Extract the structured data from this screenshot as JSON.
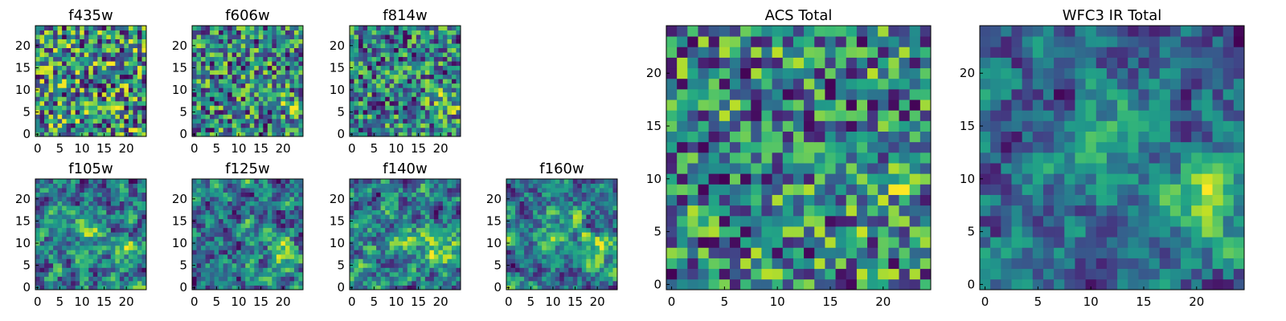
{
  "chart_data": [
    {
      "id": "f435w",
      "type": "heatmap",
      "title": "f435w",
      "colormap": "viridis",
      "size": 25,
      "texture": "noise",
      "hotspots": [],
      "xticks": [
        "0",
        "5",
        "10",
        "15",
        "20"
      ],
      "yticks": [
        "0",
        "5",
        "10",
        "15",
        "20"
      ],
      "xlim": [
        0,
        25
      ],
      "ylim": [
        0,
        25
      ]
    },
    {
      "id": "f606w",
      "type": "heatmap",
      "title": "f606w",
      "colormap": "viridis",
      "size": 25,
      "texture": "noise",
      "hotspots": [
        {
          "x": 22,
          "y": 7,
          "amp": 0.15
        }
      ],
      "xticks": [
        "0",
        "5",
        "10",
        "15",
        "20"
      ],
      "yticks": [
        "0",
        "5",
        "10",
        "15",
        "20"
      ],
      "xlim": [
        0,
        25
      ],
      "ylim": [
        0,
        25
      ]
    },
    {
      "id": "f814w",
      "type": "heatmap",
      "title": "f814w",
      "colormap": "viridis",
      "size": 25,
      "texture": "noise",
      "hotspots": [
        {
          "x": 21,
          "y": 7,
          "amp": 0.3
        }
      ],
      "xticks": [
        "0",
        "5",
        "10",
        "15",
        "20"
      ],
      "yticks": [
        "0",
        "5",
        "10",
        "15",
        "20"
      ],
      "xlim": [
        0,
        25
      ],
      "ylim": [
        0,
        25
      ]
    },
    {
      "id": "f105w",
      "type": "heatmap",
      "title": "f105w",
      "colormap": "viridis",
      "size": 25,
      "texture": "smooth",
      "hotspots": [
        {
          "x": 19,
          "y": 9,
          "amp": 0.3
        },
        {
          "x": 12,
          "y": 13,
          "amp": 0.25
        }
      ],
      "xticks": [
        "0",
        "5",
        "10",
        "15",
        "20"
      ],
      "yticks": [
        "0",
        "5",
        "10",
        "15",
        "20"
      ],
      "xlim": [
        0,
        25
      ],
      "ylim": [
        0,
        25
      ]
    },
    {
      "id": "f125w",
      "type": "heatmap",
      "title": "f125w",
      "colormap": "viridis",
      "size": 25,
      "texture": "smooth",
      "hotspots": [
        {
          "x": 20,
          "y": 8,
          "amp": 0.35
        },
        {
          "x": 12,
          "y": 12,
          "amp": 0.2
        }
      ],
      "xticks": [
        "0",
        "5",
        "10",
        "15",
        "20"
      ],
      "yticks": [
        "0",
        "5",
        "10",
        "15",
        "20"
      ],
      "xlim": [
        0,
        25
      ],
      "ylim": [
        0,
        25
      ]
    },
    {
      "id": "f140w",
      "type": "heatmap",
      "title": "f140w",
      "colormap": "viridis",
      "size": 25,
      "texture": "smooth",
      "hotspots": [
        {
          "x": 20,
          "y": 8,
          "amp": 0.3
        },
        {
          "x": 12,
          "y": 12,
          "amp": 0.2
        }
      ],
      "xticks": [
        "0",
        "5",
        "10",
        "15",
        "20"
      ],
      "yticks": [
        "0",
        "5",
        "10",
        "15",
        "20"
      ],
      "xlim": [
        0,
        25
      ],
      "ylim": [
        0,
        25
      ]
    },
    {
      "id": "f160w",
      "type": "heatmap",
      "title": "f160w",
      "colormap": "viridis",
      "size": 25,
      "texture": "smooth",
      "hotspots": [
        {
          "x": 20,
          "y": 9,
          "amp": 0.35
        },
        {
          "x": 11,
          "y": 12,
          "amp": 0.2
        }
      ],
      "xticks": [
        "0",
        "5",
        "10",
        "15",
        "20"
      ],
      "yticks": [
        "0",
        "5",
        "10",
        "15",
        "20"
      ],
      "xlim": [
        0,
        25
      ],
      "ylim": [
        0,
        25
      ]
    },
    {
      "id": "acs_total",
      "type": "heatmap",
      "title": "ACS Total",
      "colormap": "viridis",
      "size": 25,
      "texture": "noise",
      "hotspots": [
        {
          "x": 20,
          "y": 9,
          "amp": 0.25
        }
      ],
      "xticks": [
        "0",
        "5",
        "10",
        "15",
        "20"
      ],
      "yticks": [
        "0",
        "5",
        "10",
        "15",
        "20"
      ],
      "xlim": [
        0,
        25
      ],
      "ylim": [
        0,
        25
      ]
    },
    {
      "id": "wfc3_ir_total",
      "type": "heatmap",
      "title": "WFC3 IR Total",
      "colormap": "viridis",
      "size": 25,
      "texture": "smooth",
      "hotspots": [
        {
          "x": 21,
          "y": 8,
          "amp": 0.4
        },
        {
          "x": 12,
          "y": 13,
          "amp": 0.3
        }
      ],
      "xticks": [
        "0",
        "5",
        "10",
        "15",
        "20"
      ],
      "yticks": [
        "0",
        "5",
        "10",
        "15",
        "20"
      ],
      "xlim": [
        0,
        25
      ],
      "ylim": [
        0,
        25
      ]
    }
  ]
}
